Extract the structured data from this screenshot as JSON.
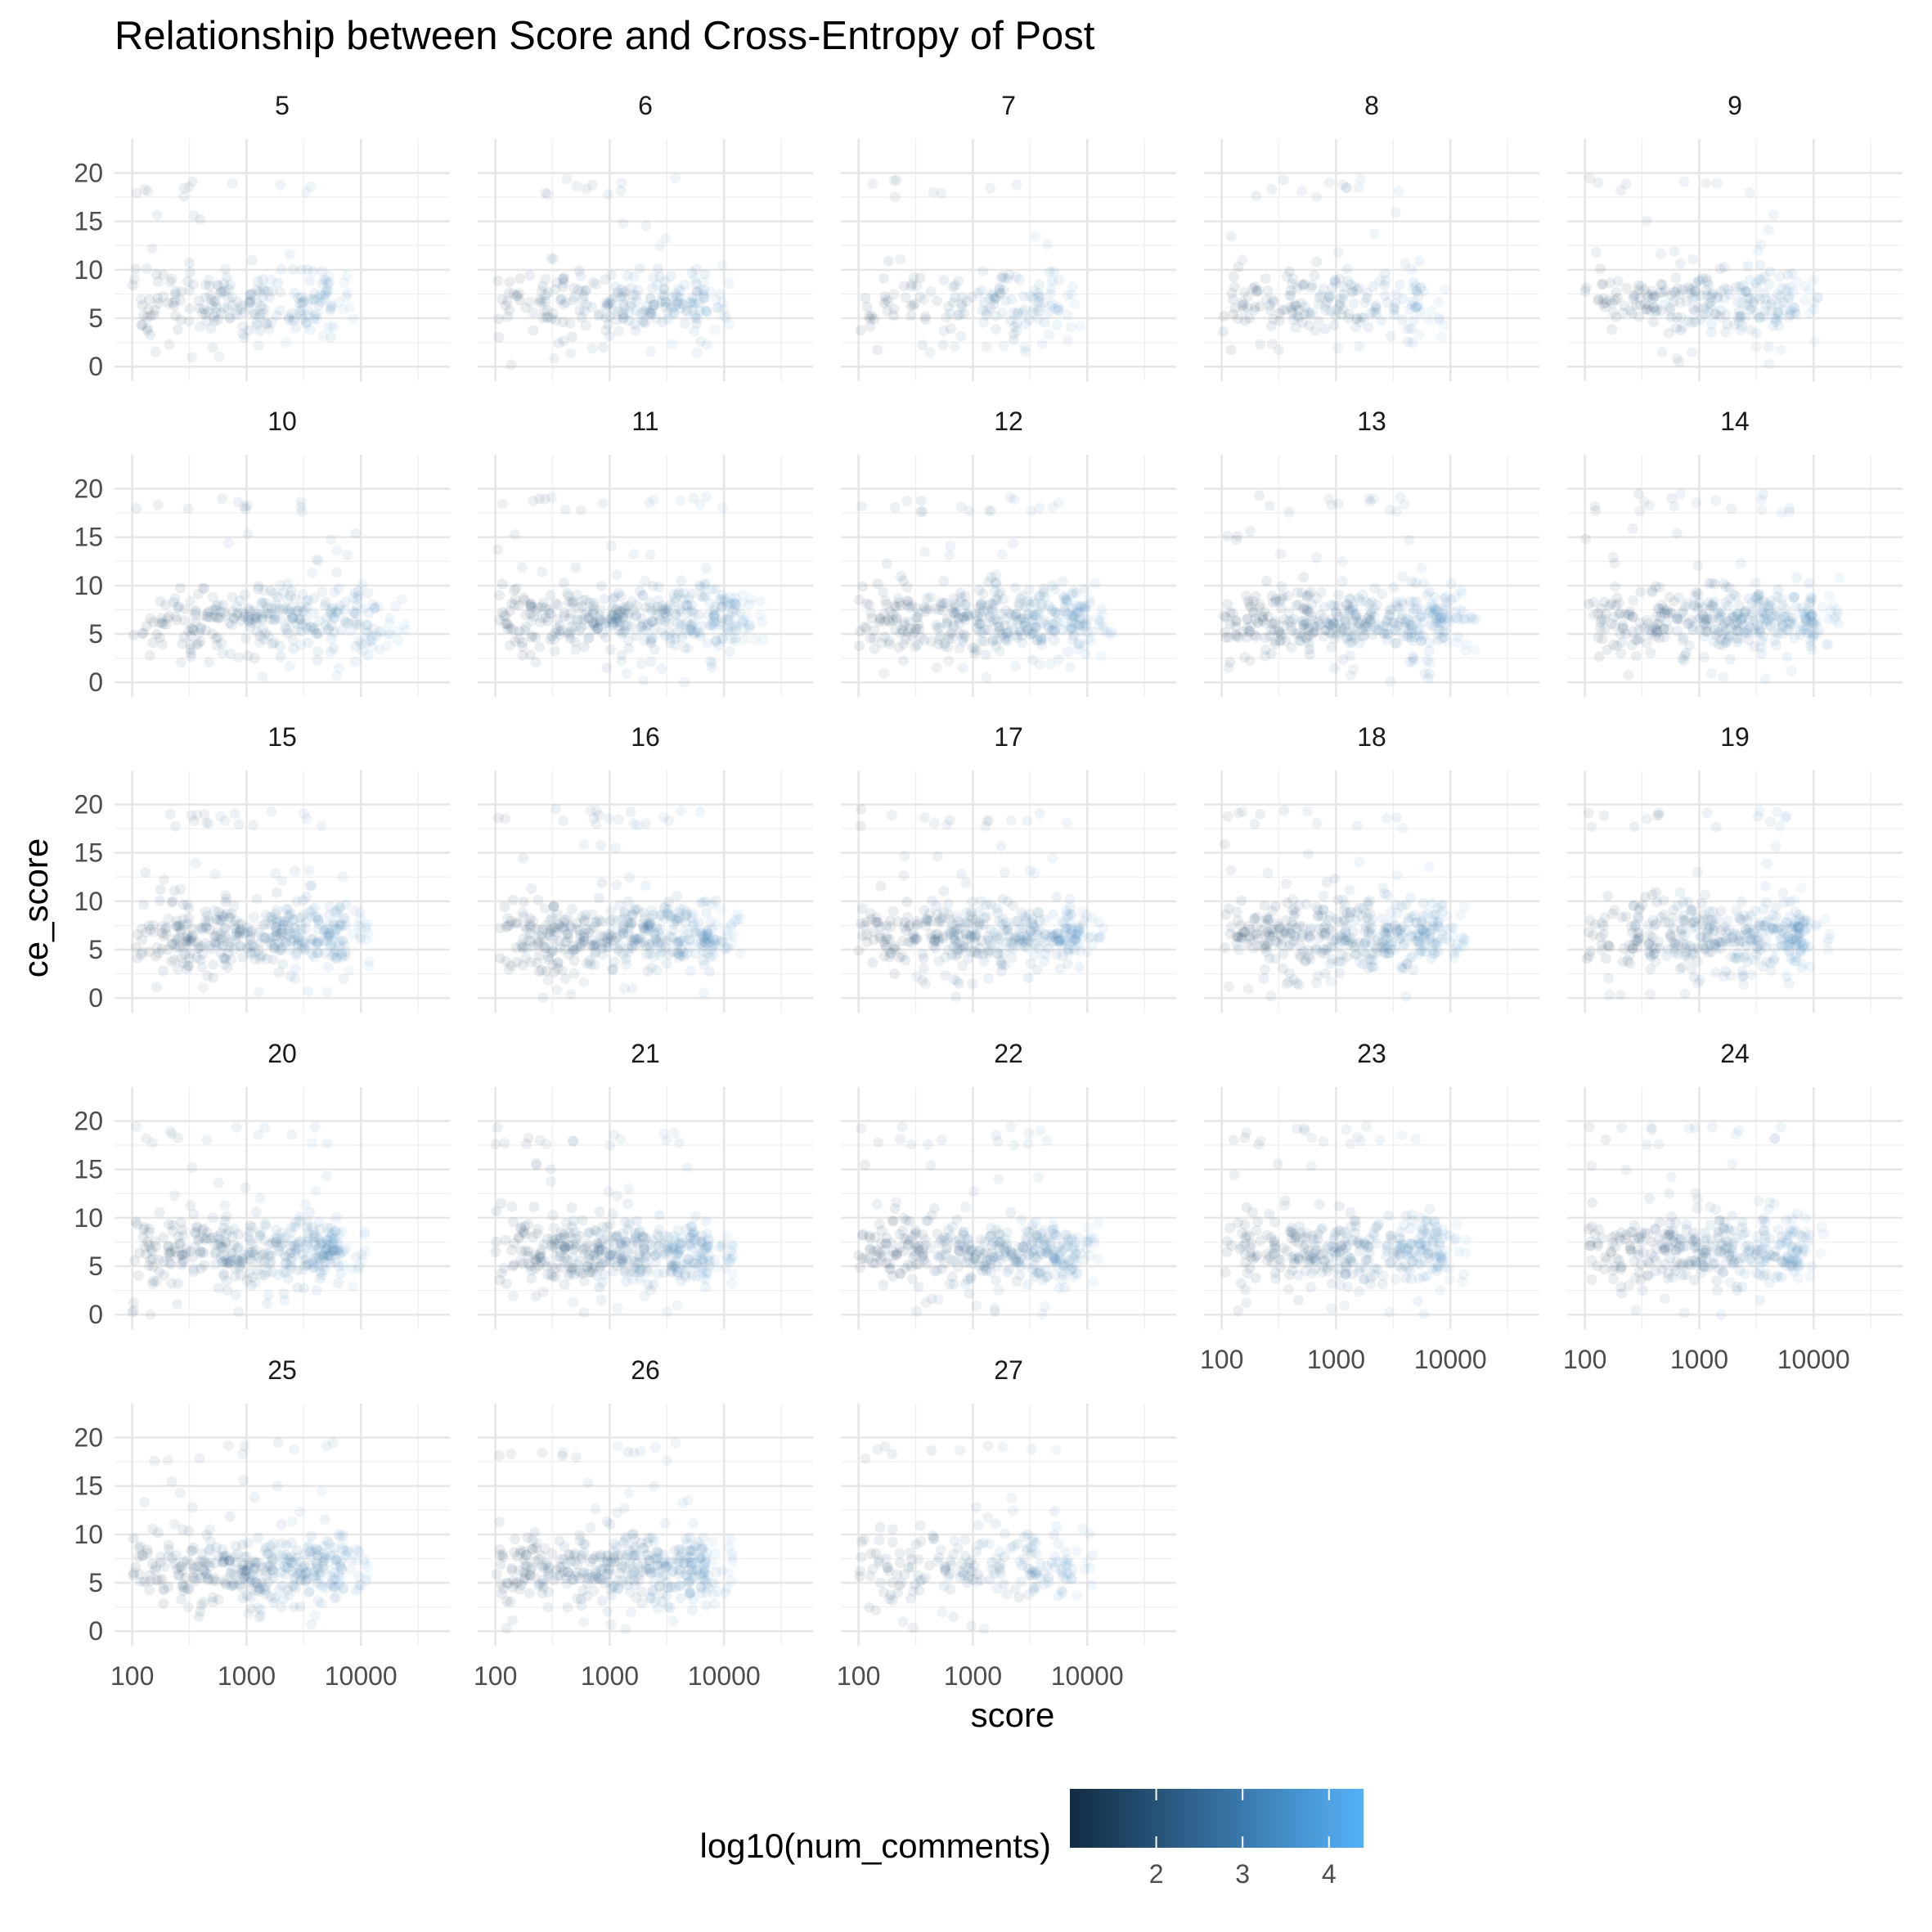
{
  "chart_data": {
    "type": "scatter",
    "title": "Relationship between Score and Cross-Entropy of Post",
    "xlabel": "score",
    "ylabel": "ce_score",
    "x_scale": "log10",
    "x_ticks": [
      100,
      1000,
      10000
    ],
    "x_tick_labels": [
      "100",
      "1000",
      "10000"
    ],
    "xlim": [
      70,
      60000
    ],
    "y_ticks": [
      0,
      5,
      10,
      15,
      20
    ],
    "y_tick_labels": [
      "0",
      "5",
      "10",
      "15",
      "20"
    ],
    "ylim": [
      -1.5,
      23.5
    ],
    "grid": true,
    "facets": [
      {
        "label": "5",
        "x_max": 9000,
        "density": 0.5
      },
      {
        "label": "6",
        "x_max": 12000,
        "density": 0.55
      },
      {
        "label": "7",
        "x_max": 9000,
        "density": 0.35
      },
      {
        "label": "8",
        "x_max": 9000,
        "density": 0.45
      },
      {
        "label": "9",
        "x_max": 11000,
        "density": 0.55
      },
      {
        "label": "10",
        "x_max": 25000,
        "density": 0.7
      },
      {
        "label": "11",
        "x_max": 22000,
        "density": 0.9
      },
      {
        "label": "12",
        "x_max": 17000,
        "density": 0.9
      },
      {
        "label": "13",
        "x_max": 17000,
        "density": 0.9
      },
      {
        "label": "14",
        "x_max": 17000,
        "density": 0.85
      },
      {
        "label": "15",
        "x_max": 12000,
        "density": 0.9
      },
      {
        "label": "16",
        "x_max": 14000,
        "density": 0.95
      },
      {
        "label": "17",
        "x_max": 14000,
        "density": 0.85
      },
      {
        "label": "18",
        "x_max": 14000,
        "density": 0.9
      },
      {
        "label": "19",
        "x_max": 14000,
        "density": 0.85
      },
      {
        "label": "20",
        "x_max": 11000,
        "density": 0.85
      },
      {
        "label": "21",
        "x_max": 12000,
        "density": 0.95
      },
      {
        "label": "22",
        "x_max": 13000,
        "density": 0.85
      },
      {
        "label": "23",
        "x_max": 14000,
        "density": 0.8
      },
      {
        "label": "24",
        "x_max": 13000,
        "density": 0.8
      },
      {
        "label": "25",
        "x_max": 12000,
        "density": 0.85
      },
      {
        "label": "26",
        "x_max": 12000,
        "density": 0.9
      },
      {
        "label": "27",
        "x_max": 12000,
        "density": 0.45
      }
    ],
    "point_summary": {
      "ce_score_bulk_range": [
        3,
        11
      ],
      "ce_score_center": 6.5,
      "ce_score_outlier_band": [
        17.5,
        19.5
      ],
      "score_min": 100
    },
    "color": {
      "variable": "log10(num_comments)",
      "low_color": "#132B43",
      "high_color": "#56B1F7",
      "range": [
        1,
        4.4
      ],
      "ticks": [
        2,
        3,
        4
      ],
      "tick_labels": [
        "2",
        "3",
        "4"
      ],
      "legend_position": "bottom"
    }
  }
}
